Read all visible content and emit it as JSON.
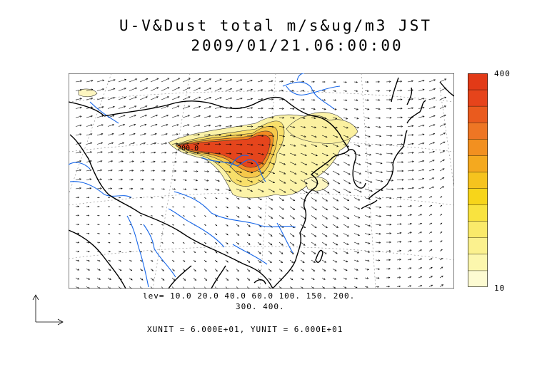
{
  "title": {
    "line1": "U-V&Dust total m/s&ug/m3 JST",
    "line2": "2009/01/21.06:00:00"
  },
  "levels": {
    "line1": "lev= 10.0 20.0 40.0 60.0 100. 150. 200.",
    "line2": "300. 400."
  },
  "units_text": "XUNIT = 6.000E+01, YUNIT = 6.000E+01",
  "contour_label": "200.0",
  "colorbar": {
    "max_label": "400",
    "min_label": "10",
    "colors": [
      "#fdfbd2",
      "#fcf7ad",
      "#fbf18e",
      "#faea6a",
      "#f9e33f",
      "#f7d51a",
      "#f6c31e",
      "#f4a91f",
      "#f29020",
      "#ee7624",
      "#ea5b1e",
      "#e6441b",
      "#e23a17"
    ]
  },
  "map": {
    "coast_color": "#000000",
    "river_color": "#1565e8",
    "dust_colors": {
      "low": "#fcf3a8",
      "mid": "#f6c84a",
      "high": "#f28a22",
      "peak": "#e5451c"
    }
  }
}
